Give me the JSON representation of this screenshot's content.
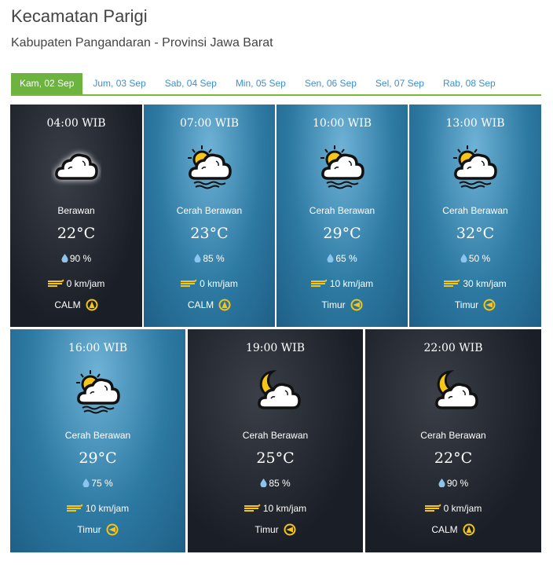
{
  "header": {
    "title": "Kecamatan Parigi",
    "subtitle": "Kabupaten Pangandaran - Provinsi Jawa Barat"
  },
  "tabs": [
    {
      "label": "Kam, 02 Sep",
      "active": true
    },
    {
      "label": "Jum, 03 Sep"
    },
    {
      "label": "Sab, 04 Sep"
    },
    {
      "label": "Min, 05 Sep"
    },
    {
      "label": "Sen, 06 Sep"
    },
    {
      "label": "Sel, 07 Sep"
    },
    {
      "label": "Rab, 08 Sep"
    }
  ],
  "colors": {
    "accent": "#6db33f",
    "tab_text": "#3b8fd0",
    "icon_yellow": "#f5c518"
  },
  "forecasts": [
    {
      "time": "04:00 WIB",
      "icon": "cloud-icon",
      "condition": "Berawan",
      "temp": "22°C",
      "humidity": "90 %",
      "wind": "0 km/jam",
      "direction": "CALM",
      "direction_icon": "compass-north-icon",
      "theme": "night"
    },
    {
      "time": "07:00 WIB",
      "icon": "sun-cloud-haze-icon",
      "condition": "Cerah Berawan",
      "temp": "23°C",
      "humidity": "85 %",
      "wind": "0 km/jam",
      "direction": "CALM",
      "direction_icon": "compass-north-icon",
      "theme": "day"
    },
    {
      "time": "10:00 WIB",
      "icon": "sun-cloud-haze-icon",
      "condition": "Cerah Berawan",
      "temp": "29°C",
      "humidity": "65 %",
      "wind": "10 km/jam",
      "direction": "Timur",
      "direction_icon": "compass-east-icon",
      "theme": "day"
    },
    {
      "time": "13:00 WIB",
      "icon": "sun-cloud-haze-icon",
      "condition": "Cerah Berawan",
      "temp": "32°C",
      "humidity": "50 %",
      "wind": "30 km/jam",
      "direction": "Timur",
      "direction_icon": "compass-east-icon",
      "theme": "day"
    },
    {
      "time": "16:00 WIB",
      "icon": "sun-cloud-haze-icon",
      "condition": "Cerah Berawan",
      "temp": "29°C",
      "humidity": "75 %",
      "wind": "10 km/jam",
      "direction": "Timur",
      "direction_icon": "compass-east-icon",
      "theme": "day"
    },
    {
      "time": "19:00 WIB",
      "icon": "moon-cloud-icon",
      "condition": "Cerah Berawan",
      "temp": "25°C",
      "humidity": "85 %",
      "wind": "10 km/jam",
      "direction": "Timur",
      "direction_icon": "compass-east-icon",
      "theme": "night"
    },
    {
      "time": "22:00 WIB",
      "icon": "moon-cloud-icon",
      "condition": "Cerah Berawan",
      "temp": "22°C",
      "humidity": "90 %",
      "wind": "0 km/jam",
      "direction": "CALM",
      "direction_icon": "compass-north-icon",
      "theme": "night"
    }
  ]
}
